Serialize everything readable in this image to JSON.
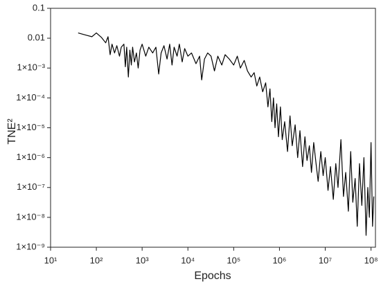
{
  "chart_data": {
    "type": "line",
    "xlabel": "Epochs",
    "ylabel": "TNE²",
    "xscale": "log",
    "yscale": "log",
    "color": "#000000",
    "x": [
      40,
      60,
      80,
      100,
      130,
      160,
      180,
      200,
      220,
      250,
      280,
      320,
      350,
      400,
      430,
      460,
      500,
      540,
      580,
      620,
      680,
      750,
      820,
      900,
      1000,
      1200,
      1400,
      1700,
      2000,
      2300,
      2600,
      3000,
      3500,
      4000,
      4500,
      5000,
      5800,
      6500,
      7500,
      8500,
      10000,
      12000,
      15000,
      18000,
      20000,
      23000,
      27000,
      32000,
      38000,
      45000,
      55000,
      65000,
      80000,
      100000,
      120000,
      140000,
      170000,
      200000,
      240000,
      280000,
      320000,
      370000,
      430000,
      500000,
      560000,
      620000,
      680000,
      740000,
      800000,
      870000,
      950000,
      1050000,
      1150000,
      1300000,
      1500000,
      1700000,
      1900000,
      2200000,
      2500000,
      2800000,
      3200000,
      3600000,
      4000000,
      4500000,
      5000000,
      5600000,
      6300000,
      7000000,
      8000000,
      9000000,
      10000000,
      11500000,
      13000000,
      15000000,
      17000000,
      19000000,
      22000000,
      25000000,
      28000000,
      32000000,
      36000000,
      40000000,
      45000000,
      50000000,
      56000000,
      63000000,
      70000000,
      78000000,
      85000000,
      92000000,
      100000000,
      108000000,
      115000000
    ],
    "values": [
      0.015,
      0.0126,
      0.0112,
      0.015,
      0.0105,
      0.007,
      0.0112,
      0.0028,
      0.0063,
      0.0032,
      0.0056,
      0.0025,
      0.005,
      0.0063,
      0.0011,
      0.005,
      0.0005,
      0.004,
      0.00126,
      0.005,
      0.0016,
      0.0032,
      0.001,
      0.004,
      0.0063,
      0.0025,
      0.005,
      0.0032,
      0.005,
      0.00063,
      0.0032,
      0.0056,
      0.002,
      0.0063,
      0.00126,
      0.005,
      0.0025,
      0.0063,
      0.0016,
      0.0045,
      0.0025,
      0.0032,
      0.0014,
      0.0025,
      0.0004,
      0.002,
      0.0032,
      0.0025,
      0.0008,
      0.0025,
      0.00126,
      0.0028,
      0.002,
      0.00126,
      0.0025,
      0.001,
      0.0018,
      0.0008,
      0.0005,
      0.0007,
      0.00025,
      0.0005,
      0.00016,
      0.00032,
      5e-05,
      0.0002,
      1.6e-05,
      0.0001,
      1e-05,
      6.3e-05,
      5e-06,
      5e-05,
      4e-06,
      1.6e-05,
      1.6e-06,
      2.5e-05,
      2.5e-06,
      1.26e-05,
      1e-06,
      8e-06,
      5e-07,
      5e-06,
      8e-07,
      2.5e-06,
      3.2e-07,
      3.2e-06,
      6.3e-07,
      1.6e-07,
      1.6e-06,
      2.5e-07,
      1e-06,
      8e-08,
      5e-07,
      4e-08,
      6.3e-07,
      1e-07,
      4e-06,
      5e-08,
      3.2e-07,
      1.6e-08,
      1.6e-06,
      3.2e-08,
      2e-07,
      5e-09,
      6.3e-07,
      2.5e-08,
      1e-06,
      2.5e-09,
      1e-07,
      1e-08,
      3.2e-06,
      5e-09,
      5e-08
    ],
    "xlim": [
      10,
      125000000
    ],
    "xticks": [
      {
        "value": 10,
        "label": "10¹"
      },
      {
        "value": 100,
        "label": "10²"
      },
      {
        "value": 1000,
        "label": "10³"
      },
      {
        "value": 10000,
        "label": "10⁴"
      },
      {
        "value": 100000,
        "label": "10⁵"
      },
      {
        "value": 1000000,
        "label": "10⁶"
      },
      {
        "value": 10000000,
        "label": "10⁷"
      },
      {
        "value": 100000000,
        "label": "10⁸"
      }
    ],
    "ylim": [
      1e-09,
      0.1
    ],
    "yticks": [
      0.1,
      0.01,
      {
        "value": 0.001,
        "label": "1×10⁻³"
      },
      {
        "value": 0.0001,
        "label": "1×10⁻⁴"
      },
      {
        "value": 1e-05,
        "label": "1×10⁻⁵"
      },
      {
        "value": 1e-06,
        "label": "1×10⁻⁶"
      },
      {
        "value": 1e-07,
        "label": "1×10⁻⁷"
      },
      {
        "value": 1e-08,
        "label": "1×10⁻⁸"
      },
      {
        "value": 1e-09,
        "label": "1×10⁻⁹"
      }
    ]
  }
}
